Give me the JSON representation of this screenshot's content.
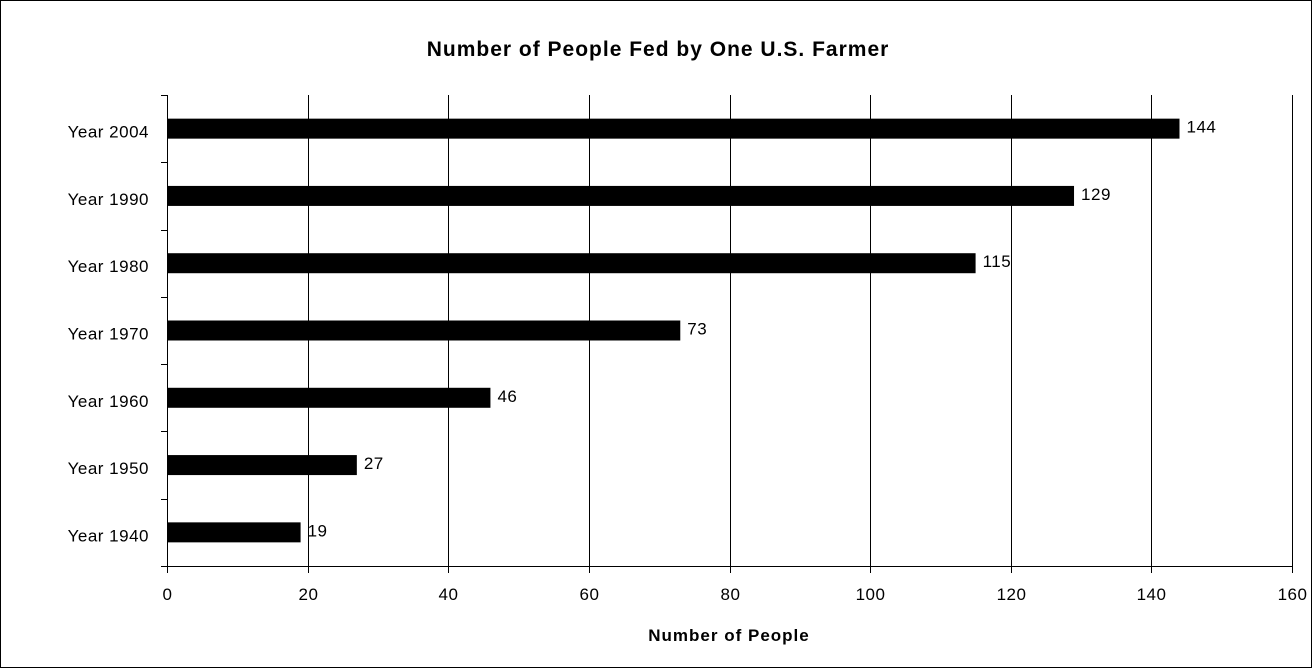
{
  "chart_data": {
    "type": "bar",
    "orientation": "horizontal",
    "title": "Number of People Fed by One U.S. Farmer",
    "xlabel": "Number of People",
    "ylabel": "",
    "categories": [
      "Year 2004",
      "Year 1990",
      "Year 1980",
      "Year 1970",
      "Year 1960",
      "Year 1950",
      "Year 1940"
    ],
    "values": [
      144,
      129,
      115,
      73,
      46,
      27,
      19
    ],
    "xlim": [
      0,
      160
    ],
    "x_ticks": [
      0,
      20,
      40,
      60,
      80,
      100,
      120,
      140,
      160
    ],
    "grid": true,
    "legend": false,
    "bar_color": "#000000",
    "grid_color": "#000000"
  }
}
